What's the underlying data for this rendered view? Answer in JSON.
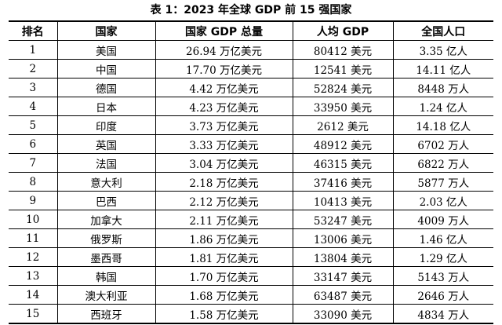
{
  "caption": "表 1：2023 年全球 GDP 前 15 强国家",
  "table": {
    "headers": [
      "排名",
      "国家",
      "国家 GDP 总量",
      "人均 GDP",
      "全国人口"
    ],
    "rows": [
      [
        "1",
        "美国",
        "26.94 万亿美元",
        "80412 美元",
        "3.35 亿人"
      ],
      [
        "2",
        "中国",
        "17.70 万亿美元",
        "12541 美元",
        "14.11 亿人"
      ],
      [
        "3",
        "德国",
        "4.42 万亿美元",
        "52824 美元",
        "8448 万人"
      ],
      [
        "4",
        "日本",
        "4.23 万亿美元",
        "33950 美元",
        "1.24 亿人"
      ],
      [
        "5",
        "印度",
        "3.73 万亿美元",
        "2612 美元",
        "14.18 亿人"
      ],
      [
        "6",
        "英国",
        "3.33 万亿美元",
        "48912 美元",
        "6702 万人"
      ],
      [
        "7",
        "法国",
        "3.04 万亿美元",
        "46315 美元",
        "6822 万人"
      ],
      [
        "8",
        "意大利",
        "2.18 万亿美元",
        "37416 美元",
        "5877 万人"
      ],
      [
        "9",
        "巴西",
        "2.12 万亿美元",
        "10413 美元",
        "2.03 亿人"
      ],
      [
        "10",
        "加拿大",
        "2.11 万亿美元",
        "53247 美元",
        "4009 万人"
      ],
      [
        "11",
        "俄罗斯",
        "1.86 万亿美元",
        "13006 美元",
        "1.46 亿人"
      ],
      [
        "12",
        "墨西哥",
        "1.81 万亿美元",
        "13804 美元",
        "1.29 亿人"
      ],
      [
        "13",
        "韩国",
        "1.70 万亿美元",
        "33147 美元",
        "5143 万人"
      ],
      [
        "14",
        "澳大利亚",
        "1.68 万亿美元",
        "63487 美元",
        "2646 万人"
      ],
      [
        "15",
        "西班牙",
        "1.58 万亿美元",
        "33090 美元",
        "4834 万人"
      ]
    ]
  }
}
